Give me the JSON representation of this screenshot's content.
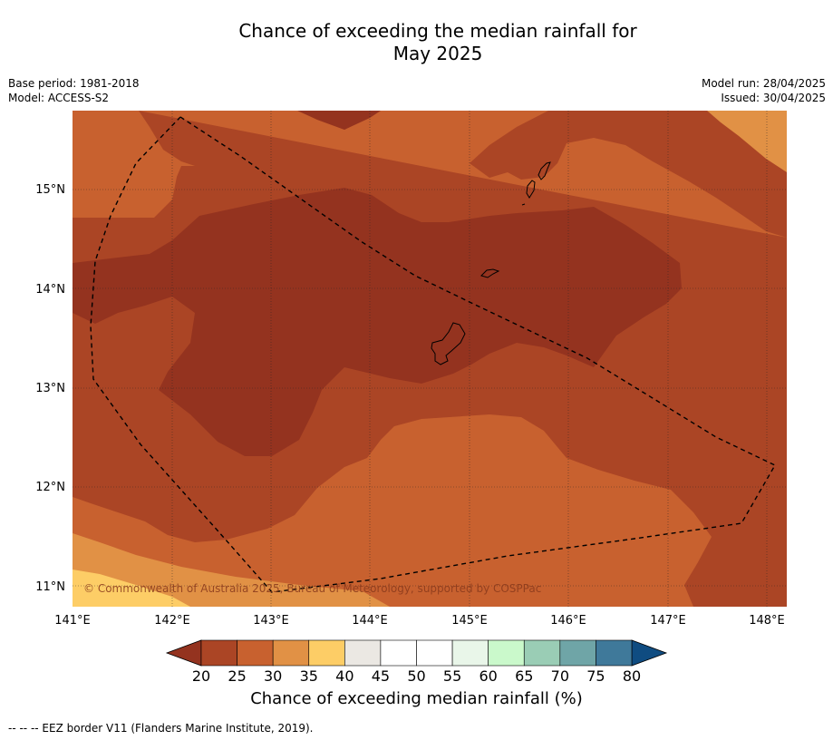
{
  "title_line1": "Chance of exceeding the median rainfall for",
  "title_line2": "May 2025",
  "base_period": "Base period: 1981-2018",
  "model": "Model: ACCESS-S2",
  "model_run": "Model run: 28/04/2025",
  "issued": "Issued: 30/04/2025",
  "copyright": "© Commonwealth of Australia 2025, Bureau of Meteorology, supported by COSPPac",
  "colorbar_title": "Chance of exceeding median rainfall (%)",
  "footnote": "--  --  -- EEZ border V11 (Flanders Marine Institute, 2019).",
  "chart_data": {
    "type": "heatmap",
    "longitude_ticks": [
      "141°E",
      "142°E",
      "143°E",
      "144°E",
      "145°E",
      "146°E",
      "147°E",
      "148°E"
    ],
    "latitude_ticks": [
      "15°N",
      "14°N",
      "13°N",
      "12°N",
      "11°N"
    ],
    "x_range": [
      141.0,
      148.2
    ],
    "y_range": [
      10.8,
      15.8
    ],
    "grid": true,
    "colorbar": {
      "ticks": [
        "20",
        "25",
        "30",
        "35",
        "40",
        "45",
        "50",
        "55",
        "60",
        "65",
        "70",
        "75",
        "80"
      ],
      "under_color": "#94331f",
      "over_color": "#0f4c81",
      "colors": [
        "#ab4525",
        "#c8612f",
        "#e19145",
        "#fdcd66",
        "#ebe8e3",
        "#ffffff",
        "#ffffff",
        "#e9f6e9",
        "#caf9cb",
        "#9acdb5",
        "#6fa5a7",
        "#3f799a"
      ]
    }
  }
}
